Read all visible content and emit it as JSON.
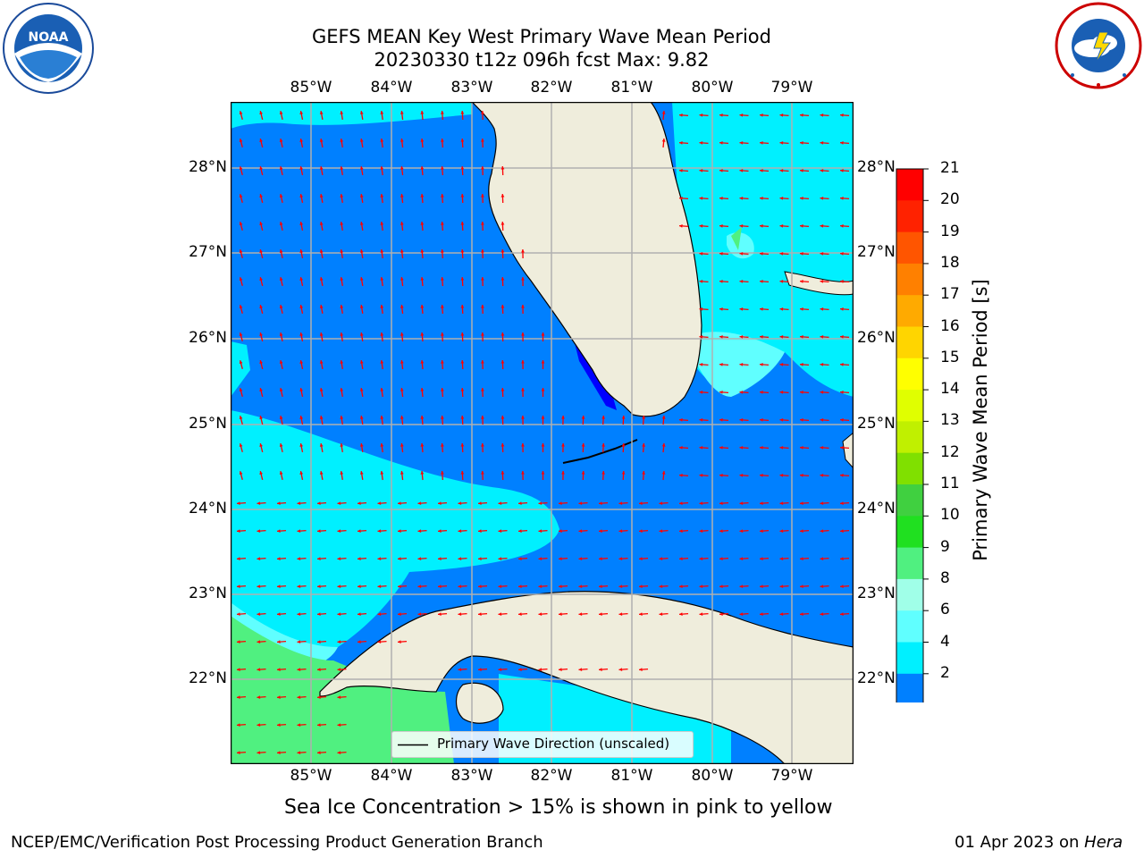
{
  "title_line1": "GEFS MEAN Key West Primary Wave Mean Period",
  "title_line2": "20230330 t12z 096h fcst   Max: 9.82",
  "lon_labels": [
    "85°W",
    "84°W",
    "83°W",
    "82°W",
    "81°W",
    "80°W",
    "79°W"
  ],
  "lat_labels": [
    "28°N",
    "27°N",
    "26°N",
    "25°N",
    "24°N",
    "23°N",
    "22°N"
  ],
  "legend_label": "Primary Wave Direction (unscaled)",
  "colorbar": {
    "label": "Primary Wave Mean Period [s]",
    "ticks": [
      "21",
      "20",
      "19",
      "18",
      "17",
      "16",
      "15",
      "14",
      "13",
      "12",
      "11",
      "10",
      "9",
      "8",
      "6",
      "4",
      "2"
    ],
    "colors": [
      "#ff0000",
      "#ff2200",
      "#ff5500",
      "#ff8000",
      "#ffaa00",
      "#ffd500",
      "#ffff00",
      "#e0ff00",
      "#c0f000",
      "#80e000",
      "#40d040",
      "#20e020",
      "#50f080",
      "#a0ffe8",
      "#60ffff",
      "#00f0ff",
      "#0080ff"
    ],
    "under_color": "#0000ff"
  },
  "sea_ice_note": "Sea Ice Concentration > 15% is shown in pink to yellow",
  "footer_left": "NCEP/EMC/Verification Post Processing Product Generation Branch",
  "footer_right_prefix": "01 Apr 2023 on ",
  "footer_right_host": "Hera",
  "logos": {
    "left_text": "NOAA",
    "left_ring": "NATIONAL OCEANIC AND ATMOSPHERIC ADMINISTRATION",
    "right_ring": "NATIONAL WEATHER SERVICE"
  },
  "colors": {
    "deep_blue": "#0080ff",
    "cyan": "#00f0ff",
    "light_cyan": "#60ffff",
    "green": "#50f080",
    "land": "#efeddc",
    "arrow": "#ff0000",
    "grid": "#b0b0b0"
  }
}
